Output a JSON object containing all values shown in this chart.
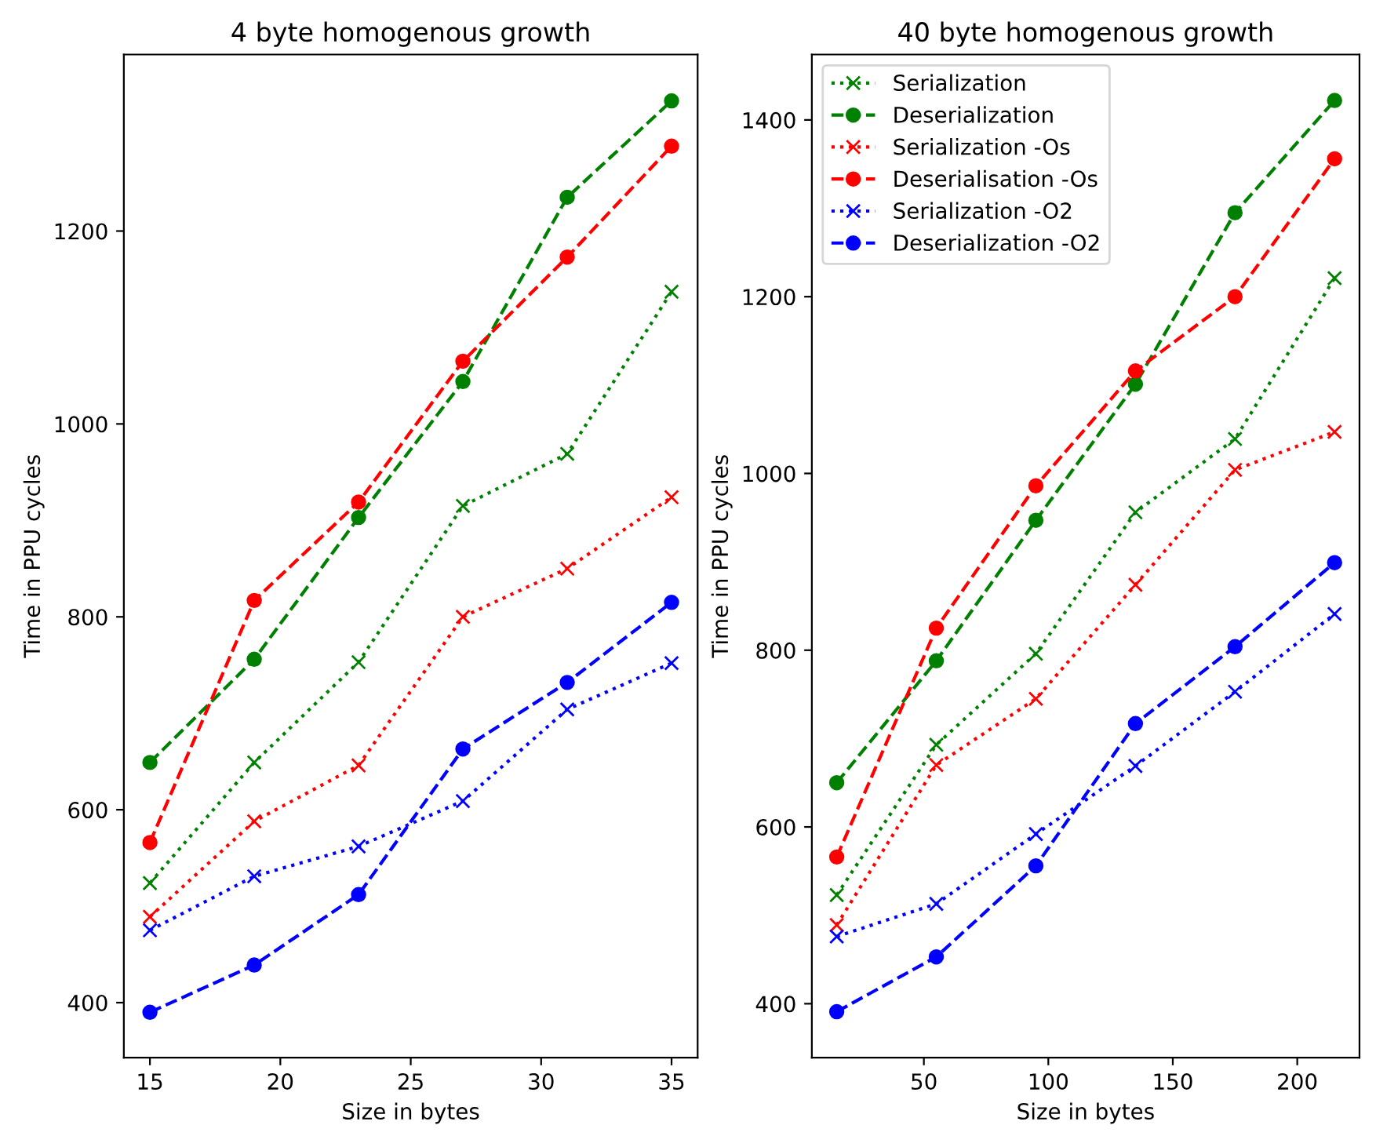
{
  "chart_data": [
    {
      "type": "line",
      "title": "4 byte homogenous growth",
      "xlabel": "Size in bytes",
      "ylabel": "Time in PPU cycles",
      "x": [
        15,
        19,
        23,
        27,
        31,
        35
      ],
      "xlim": [
        14,
        36
      ],
      "xticks": [
        15,
        20,
        25,
        30,
        35
      ],
      "ylim": [
        343,
        1383
      ],
      "yticks": [
        400,
        600,
        800,
        1000,
        1200
      ],
      "grid": false,
      "legend": false,
      "series": [
        {
          "color": "#008000",
          "marker": "cross",
          "line_style": "dotted",
          "values": [
            524,
            649,
            753,
            915,
            969,
            1137
          ]
        },
        {
          "color": "#008000",
          "marker": "circle",
          "line_style": "dashed",
          "values": [
            649,
            756,
            903,
            1044,
            1235,
            1335
          ]
        },
        {
          "color": "#ff0000",
          "marker": "cross",
          "line_style": "dotted",
          "values": [
            489,
            588,
            646,
            800,
            850,
            924
          ]
        },
        {
          "color": "#ff0000",
          "marker": "circle",
          "line_style": "dashed",
          "values": [
            566,
            817,
            919,
            1065,
            1173,
            1288
          ]
        },
        {
          "color": "#0000ff",
          "marker": "cross",
          "line_style": "dotted",
          "values": [
            475,
            531,
            562,
            609,
            704,
            752
          ]
        },
        {
          "color": "#0000ff",
          "marker": "circle",
          "line_style": "dashed",
          "values": [
            390,
            439,
            512,
            663,
            732,
            815
          ]
        }
      ]
    },
    {
      "type": "line",
      "title": "40 byte homogenous growth",
      "xlabel": "Size in bytes",
      "ylabel": "Time in PPU cycles",
      "x": [
        15,
        55,
        95,
        135,
        175,
        215
      ],
      "xlim": [
        5,
        225
      ],
      "xticks": [
        50,
        100,
        150,
        200
      ],
      "ylim": [
        339,
        1474
      ],
      "yticks": [
        400,
        600,
        800,
        1000,
        1200,
        1400
      ],
      "grid": false,
      "legend": "top left",
      "series": [
        {
          "name": "Serialization",
          "color": "#008000",
          "marker": "cross",
          "line_style": "dotted",
          "values": [
            523,
            693,
            796,
            956,
            1039,
            1221
          ]
        },
        {
          "name": "Deserialization",
          "color": "#008000",
          "marker": "circle",
          "line_style": "dashed",
          "values": [
            650,
            788,
            947,
            1101,
            1295,
            1422
          ]
        },
        {
          "name": "Serialization -Os",
          "color": "#ff0000",
          "marker": "cross",
          "line_style": "dotted",
          "values": [
            489,
            670,
            745,
            874,
            1004,
            1047
          ]
        },
        {
          "name": "Deserialisation -Os",
          "color": "#ff0000",
          "marker": "circle",
          "line_style": "dashed",
          "values": [
            566,
            825,
            986,
            1116,
            1200,
            1356
          ]
        },
        {
          "name": "Serialization -O2",
          "color": "#0000ff",
          "marker": "cross",
          "line_style": "dotted",
          "values": [
            476,
            513,
            592,
            669,
            753,
            841
          ]
        },
        {
          "name": "Deserialization -O2",
          "color": "#0000ff",
          "marker": "circle",
          "line_style": "dashed",
          "values": [
            391,
            453,
            556,
            717,
            804,
            899
          ]
        }
      ]
    }
  ]
}
